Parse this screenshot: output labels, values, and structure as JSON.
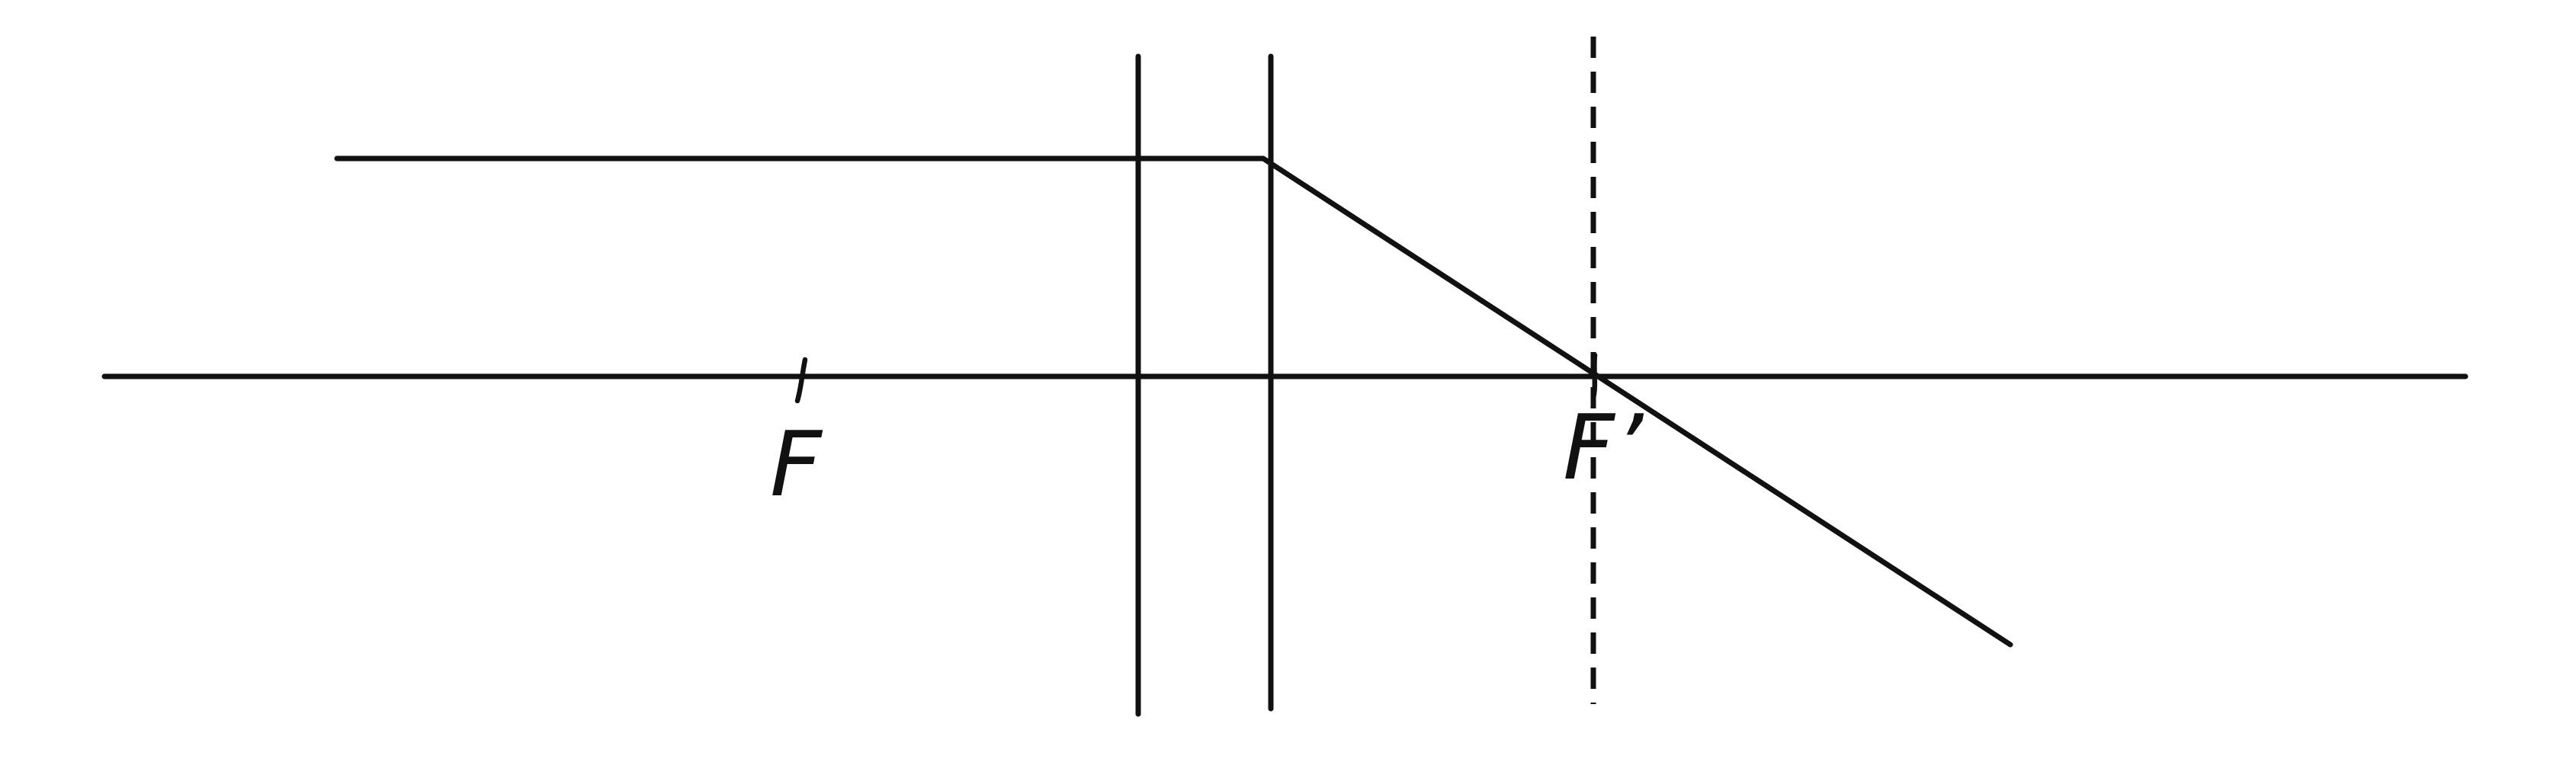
{
  "labels": {
    "focus_front": "F",
    "focus_back": "F’"
  },
  "style": {
    "ink_color": "#111111",
    "background_color": "#ffffff"
  }
}
